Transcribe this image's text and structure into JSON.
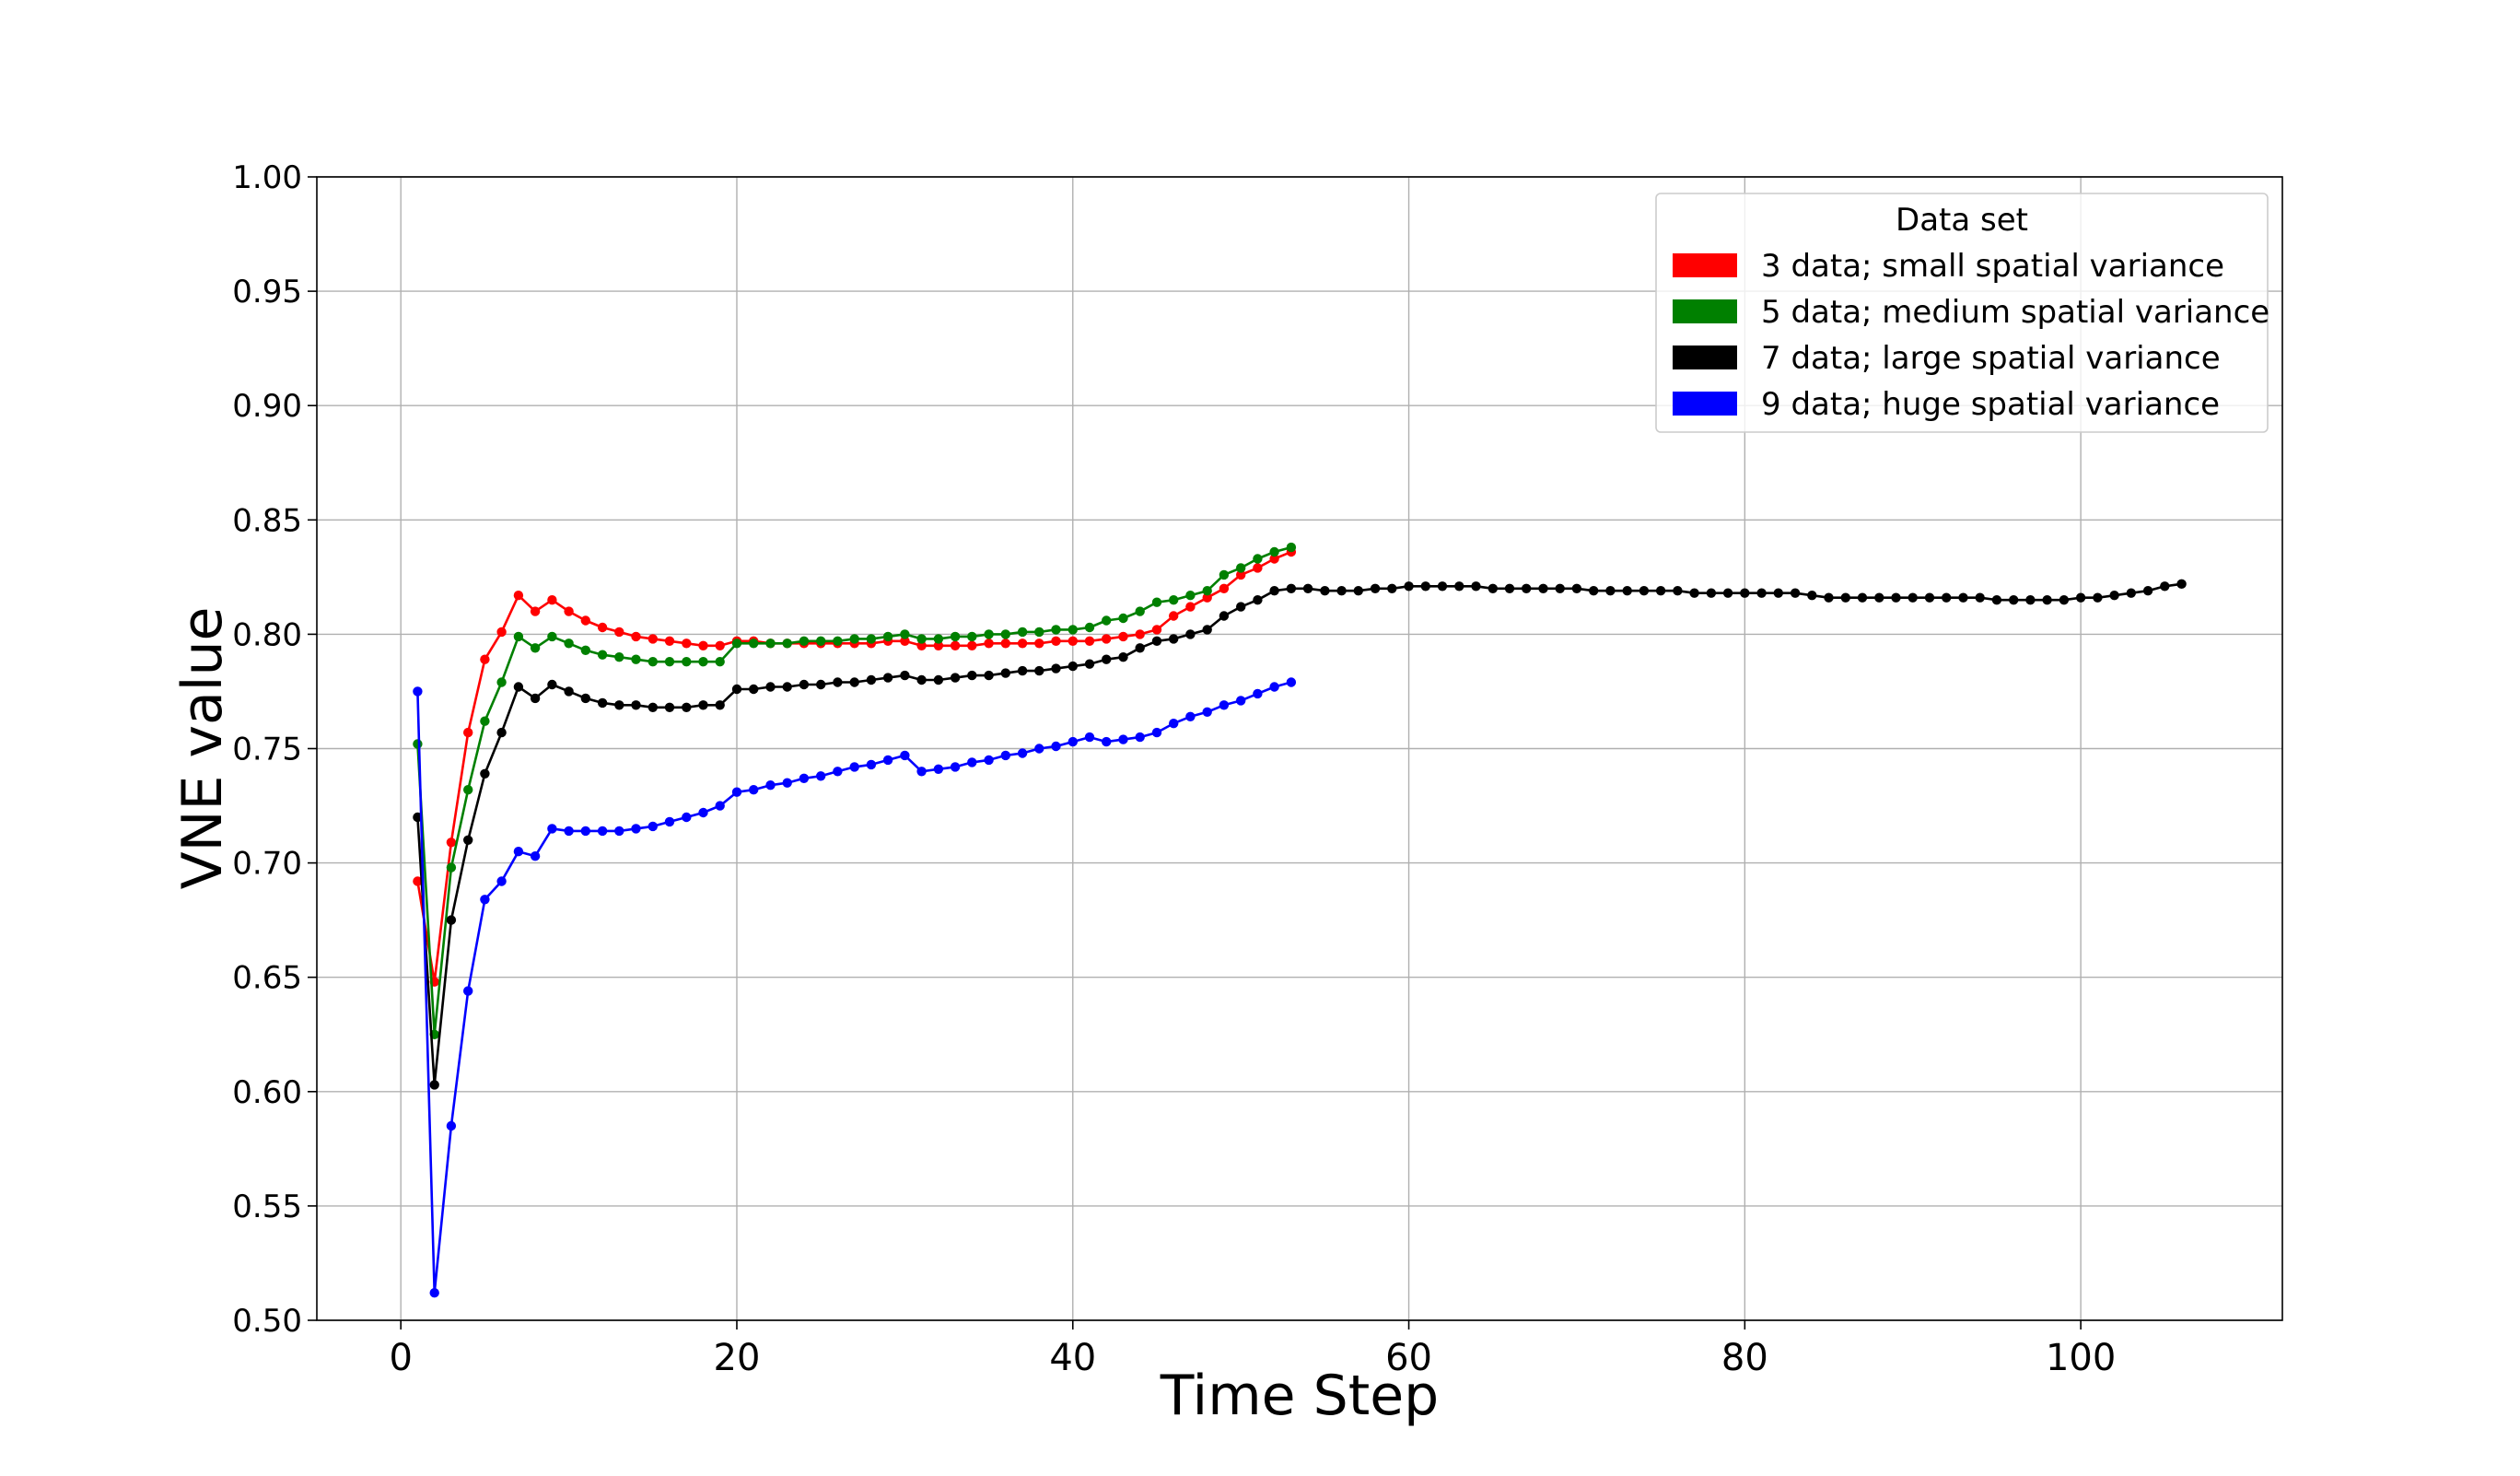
{
  "chart_data": {
    "type": "line",
    "title": "",
    "xlabel": "Time Step",
    "ylabel": "VNE value",
    "xlim": [
      -5,
      112
    ],
    "ylim": [
      0.5,
      1.0
    ],
    "xticks": [
      0,
      20,
      40,
      60,
      80,
      100
    ],
    "xtick_labels": [
      "0",
      "20",
      "40",
      "60",
      "80",
      "100"
    ],
    "yticks": [
      0.5,
      0.55,
      0.6,
      0.65,
      0.7,
      0.75,
      0.8,
      0.85,
      0.9,
      0.95,
      1.0
    ],
    "ytick_labels": [
      "0.50",
      "0.55",
      "0.60",
      "0.65",
      "0.70",
      "0.75",
      "0.80",
      "0.85",
      "0.90",
      "0.95",
      "1.00"
    ],
    "grid": true,
    "legend": {
      "title": "Data set",
      "placement": "top-right"
    },
    "series": [
      {
        "name": "3 data; small spatial variance",
        "color": "#ff0000",
        "x": [
          1,
          2,
          3,
          4,
          5,
          6,
          7,
          8,
          9,
          10,
          11,
          12,
          13,
          14,
          15,
          16,
          17,
          18,
          19,
          20,
          21,
          22,
          23,
          24,
          25,
          26,
          27,
          28,
          29,
          30,
          31,
          32,
          33,
          34,
          35,
          36,
          37,
          38,
          39,
          40,
          41,
          42,
          43,
          44,
          45,
          46,
          47,
          48,
          49,
          50,
          51,
          52,
          53
        ],
        "y": [
          0.692,
          0.648,
          0.709,
          0.757,
          0.789,
          0.801,
          0.817,
          0.81,
          0.815,
          0.81,
          0.806,
          0.803,
          0.801,
          0.799,
          0.798,
          0.797,
          0.796,
          0.795,
          0.795,
          0.797,
          0.797,
          0.796,
          0.796,
          0.796,
          0.796,
          0.796,
          0.796,
          0.796,
          0.797,
          0.797,
          0.795,
          0.795,
          0.795,
          0.795,
          0.796,
          0.796,
          0.796,
          0.796,
          0.797,
          0.797,
          0.797,
          0.798,
          0.799,
          0.8,
          0.802,
          0.808,
          0.812,
          0.816,
          0.82,
          0.826,
          0.829,
          0.833,
          0.836
        ]
      },
      {
        "name": "5 data; medium spatial variance",
        "color": "#008000",
        "x": [
          1,
          2,
          3,
          4,
          5,
          6,
          7,
          8,
          9,
          10,
          11,
          12,
          13,
          14,
          15,
          16,
          17,
          18,
          19,
          20,
          21,
          22,
          23,
          24,
          25,
          26,
          27,
          28,
          29,
          30,
          31,
          32,
          33,
          34,
          35,
          36,
          37,
          38,
          39,
          40,
          41,
          42,
          43,
          44,
          45,
          46,
          47,
          48,
          49,
          50,
          51,
          52,
          53
        ],
        "y": [
          0.752,
          0.625,
          0.698,
          0.732,
          0.762,
          0.779,
          0.799,
          0.794,
          0.799,
          0.796,
          0.793,
          0.791,
          0.79,
          0.789,
          0.788,
          0.788,
          0.788,
          0.788,
          0.788,
          0.796,
          0.796,
          0.796,
          0.796,
          0.797,
          0.797,
          0.797,
          0.798,
          0.798,
          0.799,
          0.8,
          0.798,
          0.798,
          0.799,
          0.799,
          0.8,
          0.8,
          0.801,
          0.801,
          0.802,
          0.802,
          0.803,
          0.806,
          0.807,
          0.81,
          0.814,
          0.815,
          0.817,
          0.819,
          0.826,
          0.829,
          0.833,
          0.836,
          0.838
        ]
      },
      {
        "name": "7 data; large spatial variance",
        "color": "#000000",
        "x": [
          1,
          2,
          3,
          4,
          5,
          6,
          7,
          8,
          9,
          10,
          11,
          12,
          13,
          14,
          15,
          16,
          17,
          18,
          19,
          20,
          21,
          22,
          23,
          24,
          25,
          26,
          27,
          28,
          29,
          30,
          31,
          32,
          33,
          34,
          35,
          36,
          37,
          38,
          39,
          40,
          41,
          42,
          43,
          44,
          45,
          46,
          47,
          48,
          49,
          50,
          51,
          52,
          53,
          54,
          55,
          56,
          57,
          58,
          59,
          60,
          61,
          62,
          63,
          64,
          65,
          66,
          67,
          68,
          69,
          70,
          71,
          72,
          73,
          74,
          75,
          76,
          77,
          78,
          79,
          80,
          81,
          82,
          83,
          84,
          85,
          86,
          87,
          88,
          89,
          90,
          91,
          92,
          93,
          94,
          95,
          96,
          97,
          98,
          99,
          100,
          101,
          102,
          103,
          104,
          105,
          106
        ],
        "y": [
          0.72,
          0.603,
          0.675,
          0.71,
          0.739,
          0.757,
          0.777,
          0.772,
          0.778,
          0.775,
          0.772,
          0.77,
          0.769,
          0.769,
          0.768,
          0.768,
          0.768,
          0.769,
          0.769,
          0.776,
          0.776,
          0.777,
          0.777,
          0.778,
          0.778,
          0.779,
          0.779,
          0.78,
          0.781,
          0.782,
          0.78,
          0.78,
          0.781,
          0.782,
          0.782,
          0.783,
          0.784,
          0.784,
          0.785,
          0.786,
          0.787,
          0.789,
          0.79,
          0.794,
          0.797,
          0.798,
          0.8,
          0.802,
          0.808,
          0.812,
          0.815,
          0.819,
          0.82,
          0.82,
          0.819,
          0.819,
          0.819,
          0.82,
          0.82,
          0.821,
          0.821,
          0.821,
          0.821,
          0.821,
          0.82,
          0.82,
          0.82,
          0.82,
          0.82,
          0.82,
          0.819,
          0.819,
          0.819,
          0.819,
          0.819,
          0.819,
          0.818,
          0.818,
          0.818,
          0.818,
          0.818,
          0.818,
          0.818,
          0.817,
          0.816,
          0.816,
          0.816,
          0.816,
          0.816,
          0.816,
          0.816,
          0.816,
          0.816,
          0.816,
          0.815,
          0.815,
          0.815,
          0.815,
          0.815,
          0.816,
          0.816,
          0.817,
          0.818,
          0.819,
          0.821,
          0.822
        ]
      },
      {
        "name": "9 data; huge spatial variance",
        "color": "#0000ff",
        "x": [
          1,
          2,
          3,
          4,
          5,
          6,
          7,
          8,
          9,
          10,
          11,
          12,
          13,
          14,
          15,
          16,
          17,
          18,
          19,
          20,
          21,
          22,
          23,
          24,
          25,
          26,
          27,
          28,
          29,
          30,
          31,
          32,
          33,
          34,
          35,
          36,
          37,
          38,
          39,
          40,
          41,
          42,
          43,
          44,
          45,
          46,
          47,
          48,
          49,
          50,
          51,
          52,
          53
        ],
        "y": [
          0.775,
          0.512,
          0.585,
          0.644,
          0.684,
          0.692,
          0.705,
          0.703,
          0.715,
          0.714,
          0.714,
          0.714,
          0.714,
          0.715,
          0.716,
          0.718,
          0.72,
          0.722,
          0.725,
          0.731,
          0.732,
          0.734,
          0.735,
          0.737,
          0.738,
          0.74,
          0.742,
          0.743,
          0.745,
          0.747,
          0.74,
          0.741,
          0.742,
          0.744,
          0.745,
          0.747,
          0.748,
          0.75,
          0.751,
          0.753,
          0.755,
          0.753,
          0.754,
          0.755,
          0.757,
          0.761,
          0.764,
          0.766,
          0.769,
          0.771,
          0.774,
          0.777,
          0.779
        ]
      }
    ]
  }
}
